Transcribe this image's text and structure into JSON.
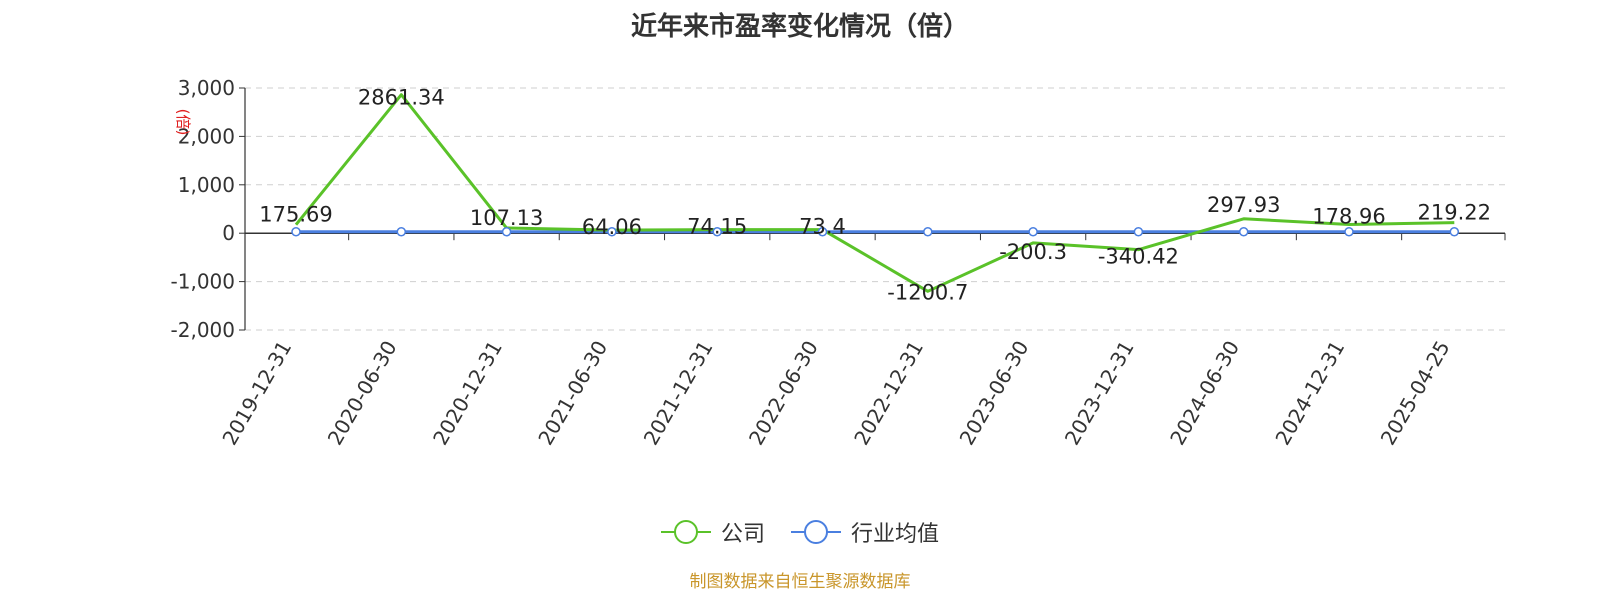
{
  "title": "近年来市盈率变化情况（倍）",
  "unit_label": "(倍)",
  "source": "制图数据来自恒生聚源数据库",
  "colors": {
    "company": "#5ac229",
    "industry": "#4a7fe0",
    "unit": "#e02020",
    "source": "#c9962b"
  },
  "chart_data": {
    "type": "line",
    "title": "近年来市盈率变化情况（倍）",
    "ylabel": "(倍)",
    "categories": [
      "2019-12-31",
      "2020-06-30",
      "2020-12-31",
      "2021-06-30",
      "2021-12-31",
      "2022-06-30",
      "2022-12-31",
      "2023-06-30",
      "2023-12-31",
      "2024-06-30",
      "2024-12-31",
      "2025-04-25"
    ],
    "ylim": [
      -2000,
      3000
    ],
    "yticks": [
      3000,
      2000,
      1000,
      0,
      -1000,
      -2000
    ],
    "ytick_labels": [
      "3,000",
      "2,000",
      "1,000",
      "0",
      "-1,000",
      "-2,000"
    ],
    "grid": true,
    "legend_position": "bottom",
    "series": [
      {
        "name": "公司",
        "values": [
          175.69,
          2861.34,
          107.13,
          64.06,
          74.15,
          73.4,
          -1200.7,
          -200.3,
          -340.42,
          297.93,
          178.96,
          219.22
        ],
        "labels": [
          "175.69",
          "2861.34",
          "107.13",
          "64.06",
          "74.15",
          "73.4",
          "-1200.7",
          "-200.3",
          "-340.42",
          "297.93",
          "178.96",
          "219.22"
        ]
      },
      {
        "name": "行业均值",
        "values": [
          30,
          30,
          30,
          30,
          30,
          30,
          30,
          30,
          30,
          30,
          30,
          30
        ]
      }
    ]
  }
}
